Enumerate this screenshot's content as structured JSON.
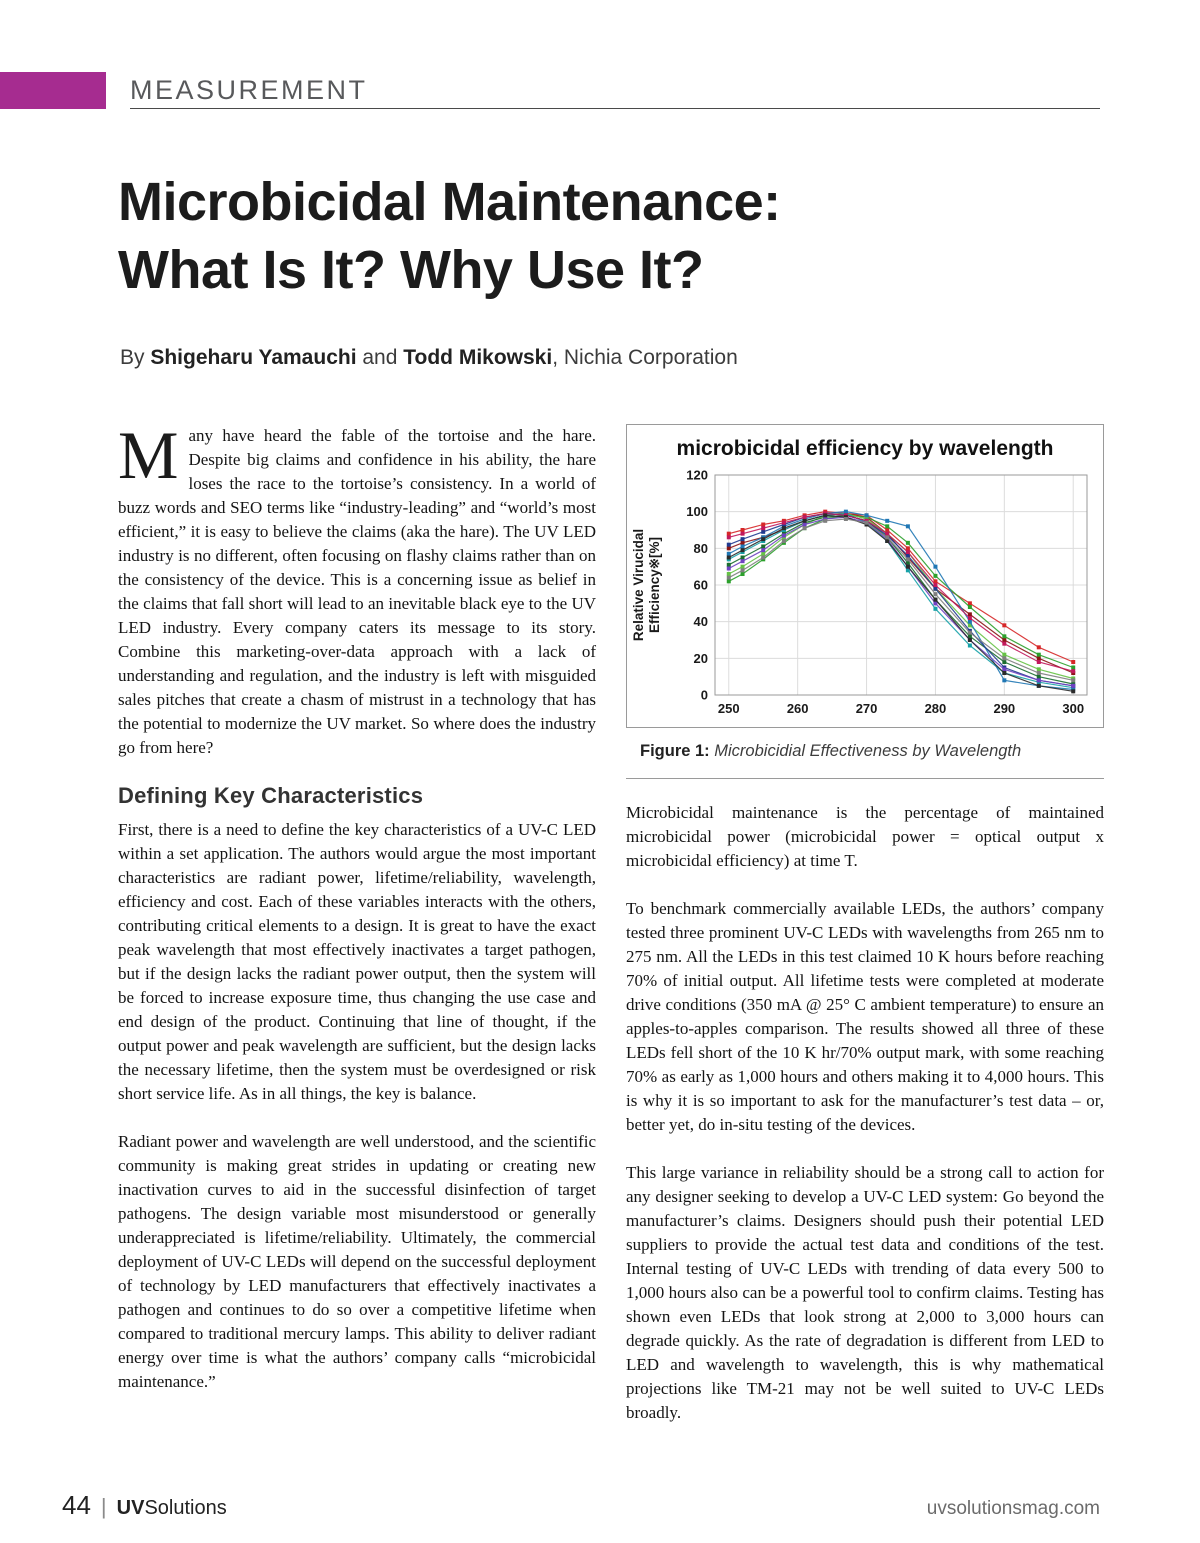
{
  "colors": {
    "accent": "#a62c90"
  },
  "masthead": {
    "section": "MEASUREMENT"
  },
  "title": {
    "line1": "Microbicidal Maintenance:",
    "line2": "What Is It? Why Use It?"
  },
  "byline": {
    "prefix": "By ",
    "author1": "Shigeharu Yamauchi",
    "conjunction": " and ",
    "author2": "Todd Mikowski",
    "suffix": ", Nichia Corporation"
  },
  "article": {
    "left": {
      "dropcap": "M",
      "opening_paragraph": "any have heard the fable of the tortoise and the hare. Despite big claims and confidence in his ability, the hare loses the race to the tortoise’s consistency. In a world of buzz words and SEO terms like “industry-leading” and “world’s most efficient,” it is easy to believe the claims (aka the hare). The UV LED industry is no different, often focusing on flashy claims rather than on the consistency of the device. This is a concerning issue as belief in the claims that fall short will lead to an inevitable black eye to the UV LED industry. Every company caters its message to its story. Combine this marketing-over-data approach with a lack of understanding and regulation, and the industry is left with misguided sales pitches that create a chasm of mistrust in a technology that has the potential to modernize the UV market. So where does the industry go from here?",
      "subhead": "Defining Key Characteristics",
      "paragraphs": [
        "First, there is a need to define the key characteristics of a UV-C LED within a set application. The authors would argue the most important characteristics are radiant power, lifetime/reliability, wavelength, efficiency and cost. Each of these variables interacts with the others, contributing critical elements to a design. It is great to have the exact peak wavelength that most effectively inactivates a target pathogen, but if the design lacks the radiant power output, then the system will be forced to increase exposure time, thus changing the use case and end design of the product. Continuing that line of thought, if the output power and peak wavelength are sufficient, but the design lacks the necessary lifetime, then the system must be overdesigned or risk short service life. As in all things, the key is balance.",
        "Radiant power and wavelength are well understood, and the scientific community is making great strides in updating or creating new inactivation curves to aid in the successful disinfection of target pathogens. The design variable most misunderstood or generally underappreciated is lifetime/reliability. Ultimately, the commercial deployment of UV-C LEDs will depend on the successful deployment of technology by LED manufacturers that effectively inactivates a pathogen and continues to do so over a competitive lifetime when compared to traditional mercury lamps. This ability to deliver radiant energy over time is what the authors’ company calls “microbicidal maintenance.”"
      ]
    },
    "right": {
      "paragraphs": [
        "Microbicidal maintenance is the percentage of maintained microbicidal power (microbicidal power = optical output x microbicidal efficiency) at time T.",
        "To benchmark commercially available LEDs, the authors’ company tested three prominent UV-C LEDs with wavelengths from 265 nm to 275 nm. All the LEDs in this test claimed 10 K hours before reaching 70% of initial output. All lifetime tests were completed at moderate drive conditions (350 mA @ 25° C ambient temperature) to ensure an apples-to-apples comparison. The results showed all three of these LEDs fell short of the 10 K hr/70% output mark, with some reaching 70% as early as 1,000 hours and others making it to 4,000 hours. This is why it is so important to ask for the manufacturer’s test data – or, better yet, do in-situ testing of the devices.",
        "This large variance in reliability should be a strong call to action for any designer seeking to develop a UV-C LED system: Go beyond the manufacturer’s claims. Designers should push their potential LED suppliers to provide the actual test data and conditions of the test. Internal testing of UV-C LEDs with trending of data every 500 to 1,000 hours also can be a powerful tool to confirm claims. Testing has shown even LEDs that look strong at 2,000 to 3,000 hours can degrade quickly. As the rate of degradation is different from LED to LED and wavelength to wavelength, this is why mathematical projections like TM-21 may not be well suited to UV-C LEDs broadly."
      ]
    }
  },
  "figure": {
    "caption_label": "Figure 1:",
    "caption_text": " Microbicidial Effectiveness by Wavelength"
  },
  "footer": {
    "page_number": "44",
    "separator": "|",
    "brand_bold": "UV",
    "brand_regular": "Solutions",
    "website": "uvsolutionsmag.com"
  },
  "chart_data": {
    "type": "line",
    "title": "microbicidal efficiency by wavelength",
    "ylabel_line1": "Relative Virucidal",
    "ylabel_line2": "Efficiency※[%]",
    "xlabel": "",
    "xlim": [
      248,
      302
    ],
    "ylim": [
      0,
      120
    ],
    "xticks": [
      250,
      260,
      270,
      280,
      290,
      300
    ],
    "yticks": [
      0,
      20,
      40,
      60,
      80,
      100,
      120
    ],
    "grid": true,
    "legend": "none",
    "x": [
      250,
      252,
      255,
      258,
      261,
      264,
      267,
      270,
      273,
      276,
      280,
      285,
      290,
      295,
      300
    ],
    "series": [
      {
        "color": "#d62728",
        "values": [
          88,
          90,
          93,
          95,
          98,
          100,
          99,
          98,
          90,
          80,
          62,
          50,
          38,
          26,
          18
        ]
      },
      {
        "color": "#8c1515",
        "values": [
          80,
          83,
          86,
          90,
          95,
          98,
          99,
          97,
          88,
          75,
          58,
          44,
          30,
          20,
          12
        ]
      },
      {
        "color": "#2ca02c",
        "values": [
          62,
          66,
          74,
          83,
          91,
          96,
          98,
          97,
          92,
          83,
          65,
          48,
          32,
          22,
          15
        ]
      },
      {
        "color": "#66c245",
        "values": [
          66,
          70,
          77,
          86,
          93,
          98,
          99,
          96,
          88,
          78,
          58,
          38,
          22,
          14,
          9
        ]
      },
      {
        "color": "#1a6e2f",
        "values": [
          71,
          75,
          81,
          88,
          94,
          97,
          98,
          95,
          86,
          72,
          52,
          32,
          18,
          10,
          6
        ]
      },
      {
        "color": "#17a2a8",
        "values": [
          74,
          78,
          84,
          90,
          95,
          98,
          99,
          94,
          84,
          68,
          47,
          27,
          12,
          7,
          4
        ]
      },
      {
        "color": "#1f77b4",
        "values": [
          77,
          81,
          86,
          92,
          96,
          99,
          100,
          98,
          95,
          92,
          70,
          40,
          8,
          5,
          3
        ]
      },
      {
        "color": "#203a8f",
        "values": [
          82,
          85,
          89,
          93,
          97,
          99,
          98,
          95,
          87,
          76,
          58,
          35,
          15,
          8,
          5
        ]
      },
      {
        "color": "#6f42c1",
        "values": [
          69,
          73,
          79,
          87,
          93,
          96,
          97,
          94,
          85,
          70,
          50,
          30,
          14,
          8,
          5
        ]
      },
      {
        "color": "#c2185b",
        "values": [
          86,
          88,
          91,
          94,
          97,
          99,
          98,
          95,
          88,
          78,
          60,
          42,
          28,
          18,
          13
        ]
      },
      {
        "color": "#2b2b2b",
        "values": [
          75,
          79,
          85,
          91,
          95,
          98,
          97,
          93,
          84,
          70,
          52,
          30,
          12,
          5,
          2
        ]
      },
      {
        "color": "#7f7f7f",
        "values": [
          64,
          68,
          75,
          84,
          91,
          95,
          96,
          94,
          86,
          74,
          55,
          34,
          20,
          12,
          8
        ]
      }
    ]
  }
}
